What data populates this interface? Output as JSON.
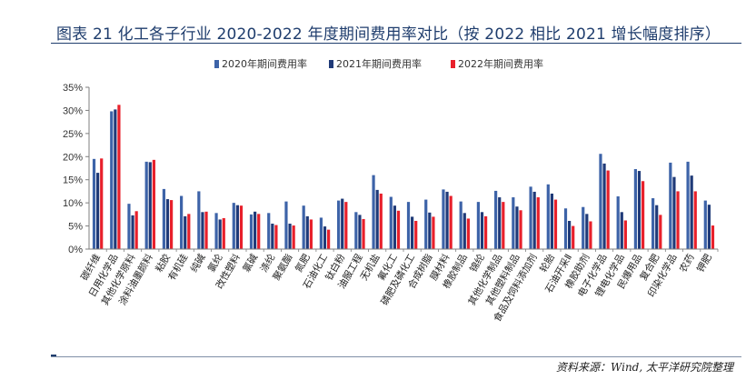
{
  "header": {
    "title": "图表 21 化工各子行业 2020-2022 年度期间费用率对比（按 2022 相比 2021 增长幅度排序）"
  },
  "footer": {
    "source": "资料来源：Wind, 太平洋研究院整理"
  },
  "colors": {
    "s2020": "#3d63a8",
    "s2021": "#1f3a78",
    "s2022": "#e8202b",
    "axis": "#7f7f7f",
    "title": "#1f3d6d"
  },
  "chart_data": {
    "type": "bar",
    "title": "",
    "xlabel": "",
    "ylabel": "",
    "ylim": [
      0,
      35
    ],
    "yticks": [
      "0%",
      "5%",
      "10%",
      "15%",
      "20%",
      "25%",
      "30%",
      "35%"
    ],
    "grid": false,
    "legend_position": "top-center",
    "categories": [
      "碳纤维",
      "日用化学品",
      "其他化学原料",
      "涂料油墨颜料",
      "粘胶",
      "有机硅",
      "纯碱",
      "氯纶",
      "改性塑料",
      "氯碱",
      "涤纶",
      "聚氨酯",
      "氮肥",
      "石油化工",
      "钛白粉",
      "油服工程",
      "无机盐",
      "氟化工",
      "磷肥及磷化工",
      "合成树脂",
      "膜材料",
      "橡胶制品",
      "锦纶",
      "其他化学制品",
      "其他塑料制品",
      "食品及饲料添加剂",
      "轮胎",
      "石油开采Ⅱ",
      "橡胶助剂",
      "电子化学品",
      "锂电化学品",
      "民爆用品",
      "复合肥",
      "印染化学品",
      "农药",
      "钾肥"
    ],
    "series": [
      {
        "name": "2020年期间费用率",
        "values": [
          19.5,
          29.8,
          9.8,
          18.9,
          13.0,
          11.5,
          12.5,
          7.8,
          10.0,
          7.5,
          7.8,
          10.3,
          9.4,
          6.8,
          10.5,
          8.0,
          16.0,
          11.3,
          10.2,
          10.7,
          12.9,
          10.3,
          10.2,
          12.6,
          11.2,
          13.5,
          14.0,
          8.8,
          9.1,
          20.6,
          11.4,
          17.3,
          11.0,
          18.7,
          18.9,
          10.5
        ]
      },
      {
        "name": "2021年期间费用率",
        "values": [
          16.5,
          30.2,
          7.3,
          18.8,
          10.8,
          7.1,
          8.0,
          6.4,
          9.5,
          8.1,
          5.5,
          5.5,
          7.1,
          4.9,
          10.9,
          7.4,
          12.8,
          9.4,
          7.0,
          7.9,
          12.4,
          7.8,
          8.0,
          11.2,
          9.2,
          12.4,
          12.0,
          6.1,
          7.6,
          18.5,
          8.0,
          16.9,
          9.5,
          15.6,
          15.9,
          9.6
        ]
      },
      {
        "name": "2022年期间费用率",
        "values": [
          19.6,
          31.2,
          8.2,
          19.3,
          10.6,
          7.6,
          8.1,
          6.7,
          9.4,
          7.6,
          5.2,
          5.1,
          6.4,
          4.2,
          10.2,
          6.5,
          12.0,
          8.3,
          6.1,
          7.0,
          11.5,
          6.6,
          7.1,
          10.2,
          8.4,
          11.2,
          10.7,
          5.0,
          6.0,
          17.0,
          6.2,
          14.7,
          7.4,
          12.5,
          12.5,
          5.1
        ]
      }
    ]
  }
}
